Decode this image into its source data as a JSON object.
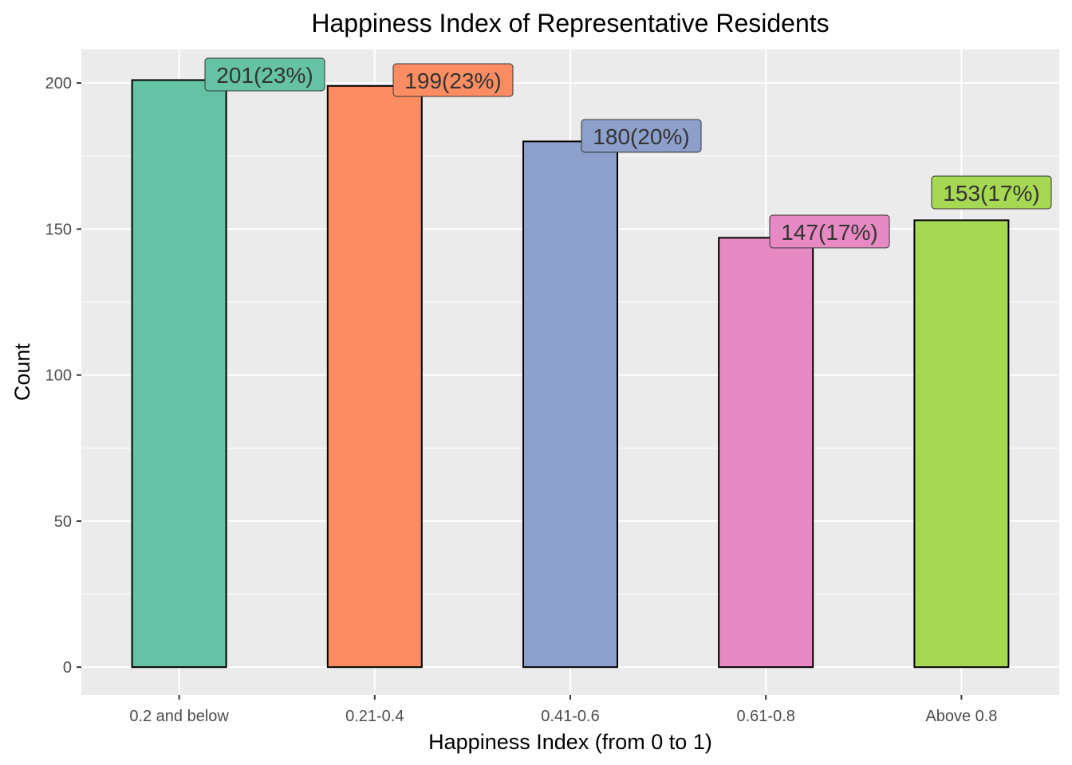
{
  "chart_data": {
    "type": "bar",
    "title": "Happiness Index of Representative Residents",
    "xlabel": "Happiness Index (from 0 to 1)",
    "ylabel": "Count",
    "categories": [
      "0.2 and below",
      "0.21-0.4",
      "0.41-0.6",
      "0.61-0.8",
      "Above 0.8"
    ],
    "values": [
      201,
      199,
      180,
      147,
      153
    ],
    "data_labels": [
      "201(23%)",
      "199(23%)",
      "180(20%)",
      "147(17%)",
      "153(17%)"
    ],
    "colors": [
      "#66C2A5",
      "#FC8D62",
      "#8DA0CB",
      "#E78AC3",
      "#A6D854"
    ],
    "yticks": [
      0,
      50,
      100,
      150,
      200
    ],
    "ylim": [
      -9.5,
      211.5
    ],
    "grid": true,
    "legend": "none"
  }
}
